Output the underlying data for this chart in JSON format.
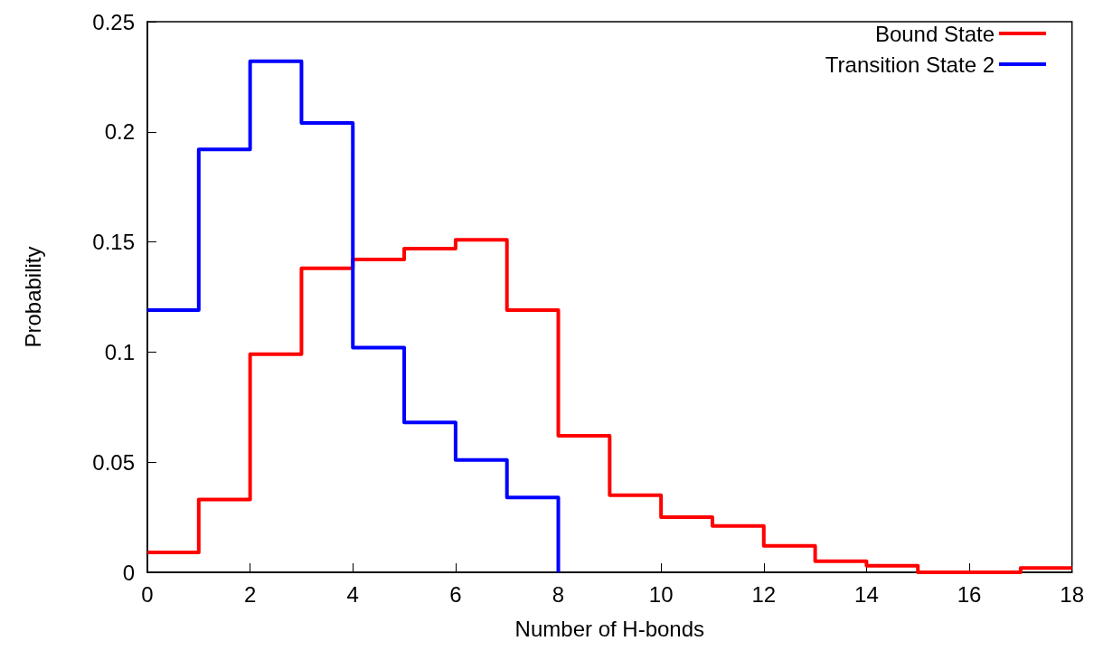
{
  "chart_data": {
    "type": "step",
    "xlabel": "Number of H-bonds",
    "ylabel": "Probability",
    "series": [
      {
        "name": "Bound State",
        "color": "#ff0000",
        "x": [
          0,
          1,
          2,
          3,
          4,
          5,
          6,
          7,
          8,
          9,
          10,
          11,
          12,
          13,
          14,
          15,
          16,
          17,
          18
        ],
        "values": [
          0.009,
          0.033,
          0.099,
          0.138,
          0.142,
          0.147,
          0.151,
          0.119,
          0.062,
          0.035,
          0.025,
          0.021,
          0.012,
          0.005,
          0.003,
          0,
          0,
          0.002,
          0.002
        ]
      },
      {
        "name": "Transition State 2",
        "color": "#0000ff",
        "x": [
          0,
          1,
          2,
          3,
          4,
          5,
          6,
          7,
          8
        ],
        "values": [
          0.119,
          0.192,
          0.232,
          0.204,
          0.102,
          0.068,
          0.051,
          0.034,
          0
        ]
      }
    ],
    "xlim": [
      0,
      18
    ],
    "ylim": [
      0,
      0.25
    ],
    "xticks": [
      0,
      2,
      4,
      6,
      8,
      10,
      12,
      14,
      16,
      18
    ],
    "yticks": [
      0,
      0.05,
      0.1,
      0.15,
      0.2,
      0.25
    ],
    "legend": "top right"
  }
}
